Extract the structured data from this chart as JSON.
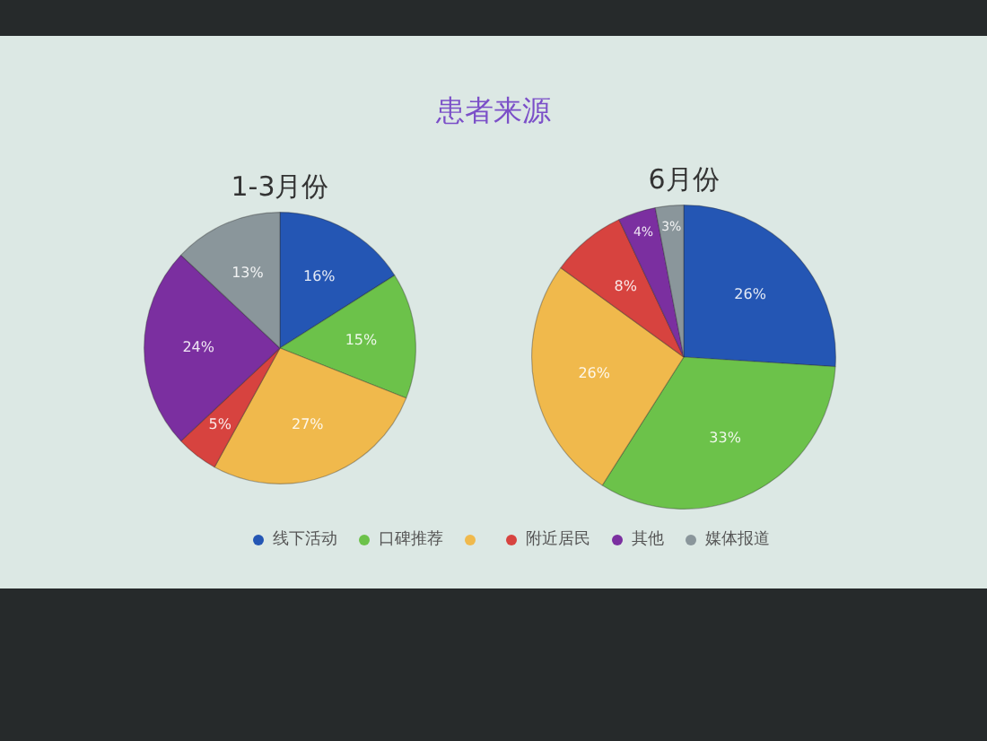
{
  "chart_data": {
    "type": "pie",
    "title": "患者来源",
    "categories": [
      "线下活动",
      "口碑推荐",
      null,
      "附近居民",
      "其他",
      "媒体报道"
    ],
    "colors": [
      "#2456b4",
      "#6cc24a",
      "#f0b94c",
      "#d7433f",
      "#7b2fa0",
      "#8a969b"
    ],
    "series": [
      {
        "name": "1-3月份",
        "values": [
          16,
          15,
          27,
          5,
          24,
          13
        ],
        "value_labels": [
          "16%",
          "15%",
          "27%",
          "5%",
          "24%",
          "13%"
        ]
      },
      {
        "name": "6月份",
        "values": [
          26,
          33,
          26,
          8,
          4,
          3
        ],
        "value_labels": [
          "26%",
          "33%",
          "26%",
          "8%",
          "4%",
          "3%"
        ]
      }
    ],
    "legend": "bottom"
  }
}
